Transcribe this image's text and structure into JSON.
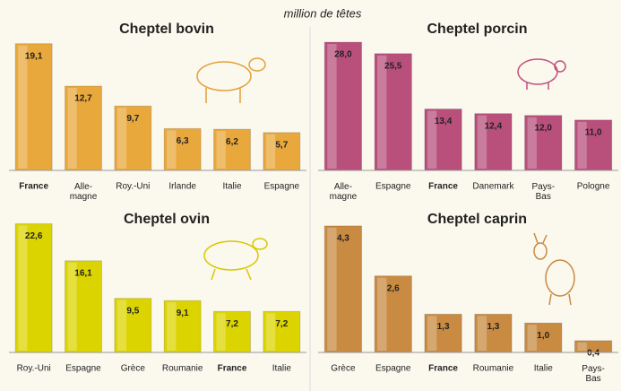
{
  "unit": "million de têtes",
  "chart_data": [
    {
      "type": "bar",
      "title": "Cheptel bovin",
      "color": "#e9a83c",
      "categories": [
        "France",
        "Alle-\nmagne",
        "Roy.-Uni",
        "Irlande",
        "Italie",
        "Espagne"
      ],
      "values": [
        19.1,
        12.7,
        9.7,
        6.3,
        6.2,
        5.7
      ],
      "value_labels": [
        "19,1",
        "12,7",
        "9,7",
        "6,3",
        "6,2",
        "5,7"
      ],
      "ylim": [
        0,
        19.6
      ],
      "bold_categories": [
        0
      ]
    },
    {
      "type": "bar",
      "title": "Cheptel porcin",
      "color": "#b9507c",
      "categories": [
        "Alle-\nmagne",
        "Espagne",
        "France",
        "Danemark",
        "Pays-\nBas",
        "Pologne"
      ],
      "values": [
        28.0,
        25.5,
        13.4,
        12.4,
        12.0,
        11.0
      ],
      "value_labels": [
        "28,0",
        "25,5",
        "13,4",
        "12,4",
        "12,0",
        "11,0"
      ],
      "ylim": [
        0,
        28.4
      ],
      "bold_categories": [
        2
      ]
    },
    {
      "type": "bar",
      "title": "Cheptel ovin",
      "color": "#dcd400",
      "categories": [
        "Roy.-Uni",
        "Espagne",
        "Grèce",
        "Roumanie",
        "France",
        "Italie"
      ],
      "values": [
        22.6,
        16.1,
        9.5,
        9.1,
        7.2,
        7.2
      ],
      "value_labels": [
        "22,6",
        "16,1",
        "9,5",
        "9,1",
        "7,2",
        "7,2"
      ],
      "ylim": [
        0,
        23.0
      ],
      "bold_categories": [
        4
      ]
    },
    {
      "type": "bar",
      "title": "Cheptel caprin",
      "color": "#c98b42",
      "categories": [
        "Grèce",
        "Espagne",
        "France",
        "Roumanie",
        "Italie",
        "Pays-\nBas"
      ],
      "values": [
        4.3,
        2.6,
        1.3,
        1.3,
        1.0,
        0.4
      ],
      "value_labels": [
        "4,3",
        "2,6",
        "1,3",
        "1,3",
        "1,0",
        "0,4"
      ],
      "ylim": [
        0,
        4.45
      ],
      "bold_categories": [
        2
      ]
    }
  ]
}
